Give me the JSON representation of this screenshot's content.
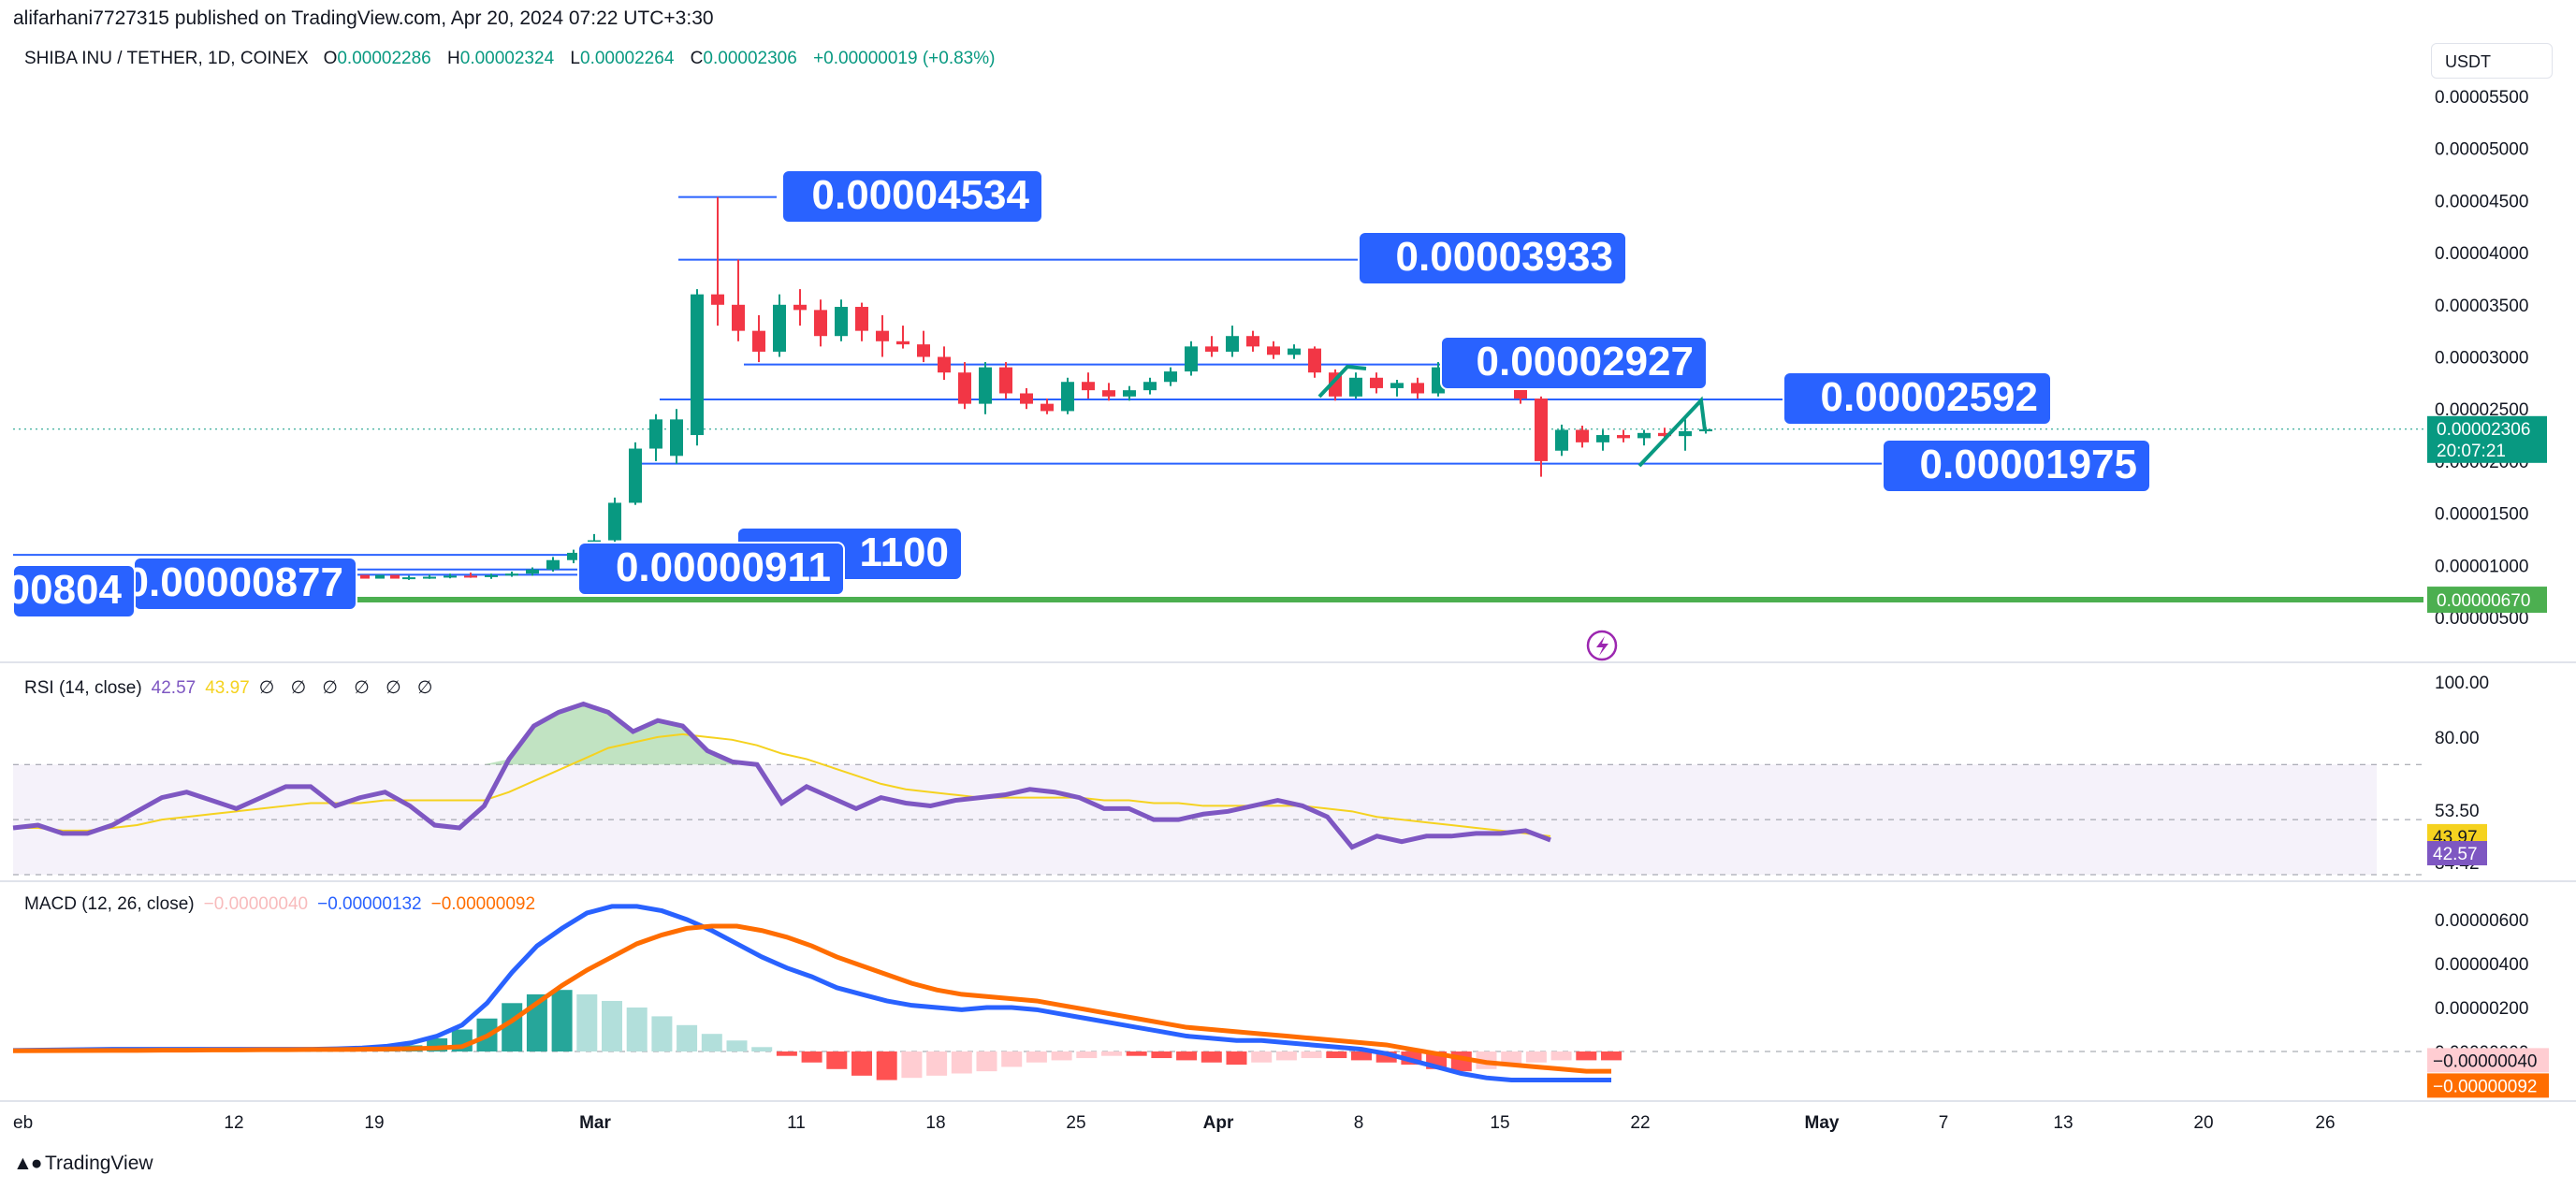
{
  "header": {
    "publisher": "alifarhani7727315 published on TradingView.com, Apr 20, 2024 07:22 UTC+3:30",
    "symbol": "SHIBA INU / TETHER, 1D, COINEX",
    "o_label": "O",
    "o_value": "0.00002286",
    "h_label": "H",
    "h_value": "0.00002324",
    "l_label": "L",
    "l_value": "0.00002264",
    "c_label": "C",
    "c_value": "0.00002306",
    "change": "+0.00000019 (+0.83%)",
    "currency_button": "USDT"
  },
  "rsi_legend": {
    "label": "RSI (14, close)",
    "value": "42.57",
    "ma_value": "43.97",
    "extra": "∅ ∅ ∅ ∅ ∅ ∅"
  },
  "macd_legend": {
    "label": "MACD (12, 26, close)",
    "hist": "−0.00000040",
    "macd": "−0.00000132",
    "signal": "−0.00000092"
  },
  "footer": {
    "brand": "TradingView",
    "logo_icon": "tradingview-logo-icon"
  },
  "colors": {
    "up": "#089981",
    "down": "#f23645",
    "rsi": "#7e57c2",
    "rsi_ma": "#f5d21f",
    "macd": "#2962ff",
    "signal": "#ff6d00",
    "line": "#2962ff",
    "label_bg": "#2962ff",
    "support": "#4caf50"
  },
  "chart_data": [
    {
      "type": "candlestick",
      "title": "SHIBA INU / TETHER, 1D, COINEX",
      "price_axis": {
        "labels": [
          "0.00005500",
          "0.00005000",
          "0.00004500",
          "0.00004000",
          "0.00003500",
          "0.00003000",
          "0.00002500",
          "0.00002000",
          "0.00001500",
          "0.00001000",
          "0.00000500"
        ],
        "values": [
          5.5e-05,
          5e-05,
          4.5e-05,
          4e-05,
          3.5e-05,
          3e-05,
          2.5e-05,
          2e-05,
          1.5e-05,
          1e-05,
          5e-06
        ],
        "last_price_label": "0.00002306",
        "countdown": "20:07:21",
        "support_price_label": "0.00000670"
      },
      "time_axis": {
        "labels": [
          "eb",
          "12",
          "19",
          "Mar",
          "11",
          "18",
          "25",
          "Apr",
          "8",
          "15",
          "22",
          "May",
          "7",
          "13",
          "20",
          "26"
        ]
      },
      "candles_note": "daily OHLC read from chart, in USDT",
      "candles": [
        [
          8.8e-06,
          9e-06,
          8.6e-06,
          8.85e-06
        ],
        [
          8.85e-06,
          9.1e-06,
          8.7e-06,
          8.9e-06
        ],
        [
          8.9e-06,
          9.2e-06,
          8.75e-06,
          9e-06
        ],
        [
          9e-06,
          9.3e-06,
          8.8e-06,
          8.95e-06
        ],
        [
          8.95e-06,
          9.2e-06,
          8.7e-06,
          9.05e-06
        ],
        [
          9.05e-06,
          9.4e-06,
          8.9e-06,
          9.2e-06
        ],
        [
          9.2e-06,
          9.8e-06,
          9e-06,
          9.6e-06
        ],
        [
          9.6e-06,
          1.08e-05,
          9.4e-06,
          1.05e-05
        ],
        [
          1.05e-05,
          1.15e-05,
          1.02e-05,
          1.12e-05
        ],
        [
          1.12e-05,
          1.3e-05,
          1.1e-05,
          1.24e-05
        ],
        [
          1.24e-05,
          1.65e-05,
          1.22e-05,
          1.6e-05
        ],
        [
          1.6e-05,
          2.18e-05,
          1.58e-05,
          2.12e-05
        ],
        [
          2.12e-05,
          2.45e-05,
          2e-05,
          2.4e-05
        ],
        [
          2.05e-05,
          2.5e-05,
          1.975e-05,
          2.4e-05
        ],
        [
          2.25e-05,
          3.65e-05,
          2.15e-05,
          3.6e-05
        ],
        [
          3.6e-05,
          4.534e-05,
          3.3e-05,
          3.5e-05
        ],
        [
          3.5e-05,
          3.933e-05,
          3.15e-05,
          3.25e-05
        ],
        [
          3.25e-05,
          3.4e-05,
          2.95e-05,
          3.05e-05
        ],
        [
          3.05e-05,
          3.6e-05,
          3e-05,
          3.5e-05
        ],
        [
          3.5e-05,
          3.65e-05,
          3.3e-05,
          3.45e-05
        ],
        [
          3.45e-05,
          3.55e-05,
          3.1e-05,
          3.2e-05
        ],
        [
          3.2e-05,
          3.55e-05,
          3.15e-05,
          3.48e-05
        ],
        [
          3.48e-05,
          3.52e-05,
          3.15e-05,
          3.25e-05
        ],
        [
          3.25e-05,
          3.4e-05,
          3e-05,
          3.15e-05
        ],
        [
          3.15e-05,
          3.3e-05,
          3.08e-05,
          3.12e-05
        ],
        [
          3.12e-05,
          3.25e-05,
          2.95e-05,
          3e-05
        ],
        [
          3e-05,
          3.1e-05,
          2.78e-05,
          2.85e-05
        ],
        [
          2.85e-05,
          2.95e-05,
          2.5e-05,
          2.55e-05
        ],
        [
          2.55e-05,
          2.95e-05,
          2.45e-05,
          2.9e-05
        ],
        [
          2.9e-05,
          2.95e-05,
          2.6e-05,
          2.65e-05
        ],
        [
          2.65e-05,
          2.7e-05,
          2.5e-05,
          2.55e-05
        ],
        [
          2.55e-05,
          2.6e-05,
          2.45e-05,
          2.48e-05
        ],
        [
          2.48e-05,
          2.8e-05,
          2.45e-05,
          2.76e-05
        ],
        [
          2.76e-05,
          2.85e-05,
          2.6e-05,
          2.68e-05
        ],
        [
          2.68e-05,
          2.75e-05,
          2.58e-05,
          2.62e-05
        ],
        [
          2.62e-05,
          2.72e-05,
          2.58e-05,
          2.68e-05
        ],
        [
          2.68e-05,
          2.8e-05,
          2.64e-05,
          2.76e-05
        ],
        [
          2.76e-05,
          2.9e-05,
          2.72e-05,
          2.86e-05
        ],
        [
          2.86e-05,
          3.15e-05,
          2.82e-05,
          3.1e-05
        ],
        [
          3.1e-05,
          3.2e-05,
          3e-05,
          3.05e-05
        ],
        [
          3.05e-05,
          3.3e-05,
          3e-05,
          3.2e-05
        ],
        [
          3.2e-05,
          3.25e-05,
          3.05e-05,
          3.1e-05
        ],
        [
          3.1e-05,
          3.15e-05,
          2.98e-05,
          3.02e-05
        ],
        [
          3.02e-05,
          3.12e-05,
          2.98e-05,
          3.08e-05
        ],
        [
          3.08e-05,
          3.1e-05,
          2.8e-05,
          2.85e-05
        ],
        [
          2.85e-05,
          2.88e-05,
          2.58e-05,
          2.62e-05
        ],
        [
          2.62e-05,
          2.85e-05,
          2.6e-05,
          2.8e-05
        ],
        [
          2.8e-05,
          2.85e-05,
          2.65e-05,
          2.7e-05
        ],
        [
          2.7e-05,
          2.78e-05,
          2.62e-05,
          2.75e-05
        ],
        [
          2.75e-05,
          2.8e-05,
          2.6e-05,
          2.65e-05
        ],
        [
          2.65e-05,
          2.95e-05,
          2.62e-05,
          2.9e-05
        ],
        [
          2.9e-05,
          2.95e-05,
          2.78e-05,
          2.8e-05
        ],
        [
          2.8e-05,
          2.82e-05,
          2.7e-05,
          2.75e-05
        ],
        [
          2.75e-05,
          2.85e-05,
          2.7e-05,
          2.8e-05
        ],
        [
          2.8e-05,
          2.83e-05,
          2.55e-05,
          2.6e-05
        ],
        [
          2.6e-05,
          2.62e-05,
          1.85e-05,
          2e-05
        ],
        [
          2.1e-05,
          2.35e-05,
          2.05e-05,
          2.3e-05
        ],
        [
          2.3e-05,
          2.34e-05,
          2.13e-05,
          2.18e-05
        ],
        [
          2.18e-05,
          2.3e-05,
          2.1e-05,
          2.25e-05
        ],
        [
          2.25e-05,
          2.3e-05,
          2.18e-05,
          2.22e-05
        ],
        [
          2.22e-05,
          2.3e-05,
          2.15e-05,
          2.27e-05
        ],
        [
          2.27e-05,
          2.32e-05,
          2.2e-05,
          2.24e-05
        ],
        [
          2.24e-05,
          2.4e-05,
          2.1e-05,
          2.287e-05
        ],
        [
          2.286e-05,
          2.324e-05,
          2.264e-05,
          2.306e-05
        ]
      ],
      "annotations": [
        {
          "label": "0.00004534",
          "price": 4.534e-05
        },
        {
          "label": "0.00003933",
          "price": 3.933e-05
        },
        {
          "label": "0.00002927",
          "price": 2.927e-05
        },
        {
          "label": "0.00002592",
          "price": 2.592e-05
        },
        {
          "label": "0.00001975",
          "price": 1.975e-05
        },
        {
          "label": "0.00000911",
          "price": 9.11e-06
        },
        {
          "label": "0.00000877",
          "price": 8.77e-06
        },
        {
          "label": "00804",
          "price": 8.04e-06
        },
        {
          "label": "1100",
          "price": 1.1e-05
        }
      ],
      "support_line": 6.7e-06
    },
    {
      "type": "line",
      "title": "RSI (14, close)",
      "axis_labels": [
        "100.00",
        "80.00",
        "53.50",
        "34.42"
      ],
      "axis_values": [
        100,
        80,
        53.5,
        34.42
      ],
      "band": [
        30,
        70
      ],
      "current_rsi_label": "42.57",
      "current_ma_label": "43.97",
      "series": [
        {
          "values": [
            47,
            48,
            45,
            45,
            48,
            53,
            58,
            60,
            57,
            54,
            58,
            62,
            62,
            55,
            58,
            60,
            55,
            48,
            47,
            55,
            72,
            84,
            89,
            92,
            89,
            82,
            86,
            84,
            75,
            71,
            70,
            56,
            62,
            58,
            54,
            58,
            56,
            55,
            57,
            58,
            59,
            61,
            60,
            58,
            54,
            54,
            50,
            50,
            52,
            53,
            55,
            57,
            55,
            51,
            40,
            44,
            42,
            44,
            44,
            45,
            45,
            46,
            42.57
          ]
        },
        {
          "values": [
            47,
            47,
            46,
            46,
            47,
            48,
            50,
            51,
            52,
            53,
            54,
            55,
            56,
            56,
            56,
            57,
            57,
            57,
            57,
            57,
            60,
            64,
            68,
            72,
            76,
            78,
            80,
            81,
            80,
            79,
            77,
            74,
            72,
            69,
            66,
            63,
            61,
            60,
            59,
            58,
            58,
            58,
            58,
            58,
            57,
            57,
            56,
            56,
            55,
            55,
            55,
            55,
            55,
            54,
            53,
            51,
            50,
            49,
            48,
            47,
            46,
            45,
            43.97
          ]
        }
      ]
    },
    {
      "type": "bar",
      "title": "MACD (12, 26, close)",
      "axis_labels": [
        "0.00000600",
        "0.00000400",
        "0.00000200",
        "0.00000000"
      ],
      "axis_values": [
        6e-06,
        4e-06,
        2e-06,
        0
      ],
      "hist_label": "−0.00000040",
      "signal_label": "−0.00000092",
      "histogram": [
        5e-08,
        5e-08,
        5e-08,
        5e-08,
        5e-08,
        4e-08,
        4e-08,
        4e-08,
        4e-08,
        5e-08,
        8e-08,
        1.4e-07,
        2.8e-07,
        6e-07,
        1e-06,
        1.5e-06,
        2.2e-06,
        2.6e-06,
        2.8e-06,
        2.6e-06,
        2.3e-06,
        2e-06,
        1.6e-06,
        1.2e-06,
        8e-07,
        5e-07,
        2e-07,
        -2e-07,
        -5e-07,
        -8e-07,
        -1.1e-06,
        -1.3e-06,
        -1.2e-06,
        -1.1e-06,
        -1e-06,
        -9e-07,
        -7e-07,
        -5e-07,
        -4e-07,
        -3e-07,
        -2e-07,
        -2e-07,
        -3e-07,
        -4e-07,
        -5e-07,
        -6e-07,
        -5e-07,
        -4e-07,
        -3e-07,
        -3e-07,
        -4e-07,
        -5e-07,
        -6e-07,
        -8e-07,
        -9e-07,
        -8e-07,
        -6e-07,
        -5e-07,
        -4e-07,
        -4e-07,
        -4e-07
      ],
      "series": [
        {
          "values": [
            1e-07,
            1e-07,
            1e-07,
            1e-07,
            1e-07,
            1e-07,
            1e-07,
            1e-07,
            1e-07,
            1.2e-07,
            1.6e-07,
            2.4e-07,
            4e-07,
            7e-07,
            1.2e-06,
            2.2e-06,
            3.6e-06,
            4.8e-06,
            5.6e-06,
            6.3e-06,
            6.6e-06,
            6.6e-06,
            6.4e-06,
            6e-06,
            5.5e-06,
            4.9e-06,
            4.3e-06,
            3.8e-06,
            3.4e-06,
            2.9e-06,
            2.6e-06,
            2.3e-06,
            2.1e-06,
            2e-06,
            1.9e-06,
            2e-06,
            2e-06,
            1.9e-06,
            1.7e-06,
            1.5e-06,
            1.3e-06,
            1.1e-06,
            9e-07,
            7e-07,
            6e-07,
            5e-07,
            5e-07,
            4e-07,
            3e-07,
            2e-07,
            1e-07,
            -1e-07,
            -4e-07,
            -7e-07,
            -1e-06,
            -1.2e-06,
            -1.3e-06,
            -1.3e-06,
            -1.3e-06,
            -1.3e-06,
            -1.3e-06
          ]
        },
        {
          "values": [
            5e-08,
            5e-08,
            6e-08,
            6e-08,
            7e-08,
            7e-08,
            8e-08,
            8e-08,
            9e-08,
            9e-08,
            1e-07,
            1.1e-07,
            1.3e-07,
            1.6e-07,
            2.2e-07,
            7e-07,
            1.4e-06,
            2.2e-06,
            3e-06,
            3.7e-06,
            4.3e-06,
            4.9e-06,
            5.3e-06,
            5.6e-06,
            5.7e-06,
            5.7e-06,
            5.5e-06,
            5.2e-06,
            4.8e-06,
            4.3e-06,
            3.9e-06,
            3.5e-06,
            3.1e-06,
            2.8e-06,
            2.6e-06,
            2.5e-06,
            2.4e-06,
            2.3e-06,
            2.1e-06,
            1.9e-06,
            1.7e-06,
            1.5e-06,
            1.3e-06,
            1.1e-06,
            1e-06,
            9e-07,
            8e-07,
            7e-07,
            6e-07,
            5e-07,
            4e-07,
            3e-07,
            1e-07,
            -1e-07,
            -3e-07,
            -5e-07,
            -6e-07,
            -7e-07,
            -8e-07,
            -9e-07,
            -9e-07
          ]
        }
      ]
    }
  ]
}
